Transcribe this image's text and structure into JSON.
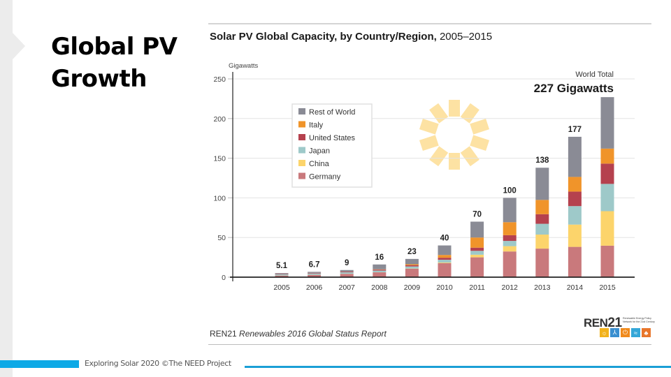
{
  "slide": {
    "title": "Global PV Growth",
    "footer": "Exploring Solar 2020 ©The NEED Project"
  },
  "source": {
    "org": "REN21",
    "report": "Renewables 2016 Global Status Report"
  },
  "logo": {
    "name_a": "REN",
    "name_b": "21",
    "tagline": "Renewable Energy Policy Network for the 21st Century",
    "icons": [
      "sun-icon",
      "wind-turbine-icon",
      "power-icon",
      "wave-icon",
      "leaf-icon"
    ],
    "icon_colors": [
      "#f2b21b",
      "#3a8fd0",
      "#f08a1c",
      "#35a7d8",
      "#e8762b"
    ]
  },
  "chart_data": {
    "type": "bar",
    "stacked": true,
    "title_bold": "Solar PV Global Capacity, by Country/Region,",
    "title_years": "2005–2015",
    "ylabel": "Gigawatts",
    "ylim": [
      0,
      250
    ],
    "yticks": [
      0,
      50,
      100,
      150,
      200,
      250
    ],
    "grid": true,
    "legend_position": "top-left",
    "categories": [
      "2005",
      "2006",
      "2007",
      "2008",
      "2009",
      "2010",
      "2011",
      "2012",
      "2013",
      "2014",
      "2015"
    ],
    "totals": [
      5.1,
      6.7,
      9,
      16,
      23,
      40,
      70,
      100,
      138,
      177,
      227
    ],
    "total_labels": [
      "5.1",
      "6.7",
      "9",
      "16",
      "23",
      "40",
      "70",
      "100",
      "138",
      "177"
    ],
    "series": [
      {
        "name": "Germany",
        "color": "#c9797c",
        "values": [
          2.0,
          2.9,
          4.2,
          6.1,
          10.6,
          17.6,
          25.0,
          32.4,
          36.0,
          38.2,
          39.7
        ]
      },
      {
        "name": "China",
        "color": "#fcd46b",
        "values": [
          0.1,
          0.1,
          0.1,
          0.1,
          0.3,
          0.8,
          3.3,
          6.7,
          17.7,
          28.1,
          43.5
        ]
      },
      {
        "name": "Japan",
        "color": "#9ec9c9",
        "values": [
          1.4,
          1.7,
          1.9,
          2.1,
          2.6,
          3.6,
          4.9,
          6.6,
          13.6,
          23.3,
          34.4
        ]
      },
      {
        "name": "United States",
        "color": "#b5414e",
        "values": [
          0.5,
          0.6,
          0.8,
          1.2,
          1.6,
          2.5,
          4.0,
          7.2,
          12.1,
          18.3,
          25.6
        ]
      },
      {
        "name": "Italy",
        "color": "#f0942a",
        "values": [
          0.05,
          0.1,
          0.1,
          0.4,
          1.2,
          3.5,
          12.8,
          16.4,
          18.0,
          18.5,
          18.9
        ]
      },
      {
        "name": "Rest of World",
        "color": "#8a8b95",
        "values": [
          1.05,
          1.3,
          1.9,
          6.1,
          6.7,
          12.0,
          20.0,
          30.7,
          40.6,
          50.6,
          64.9
        ]
      }
    ],
    "legend_order": [
      "Rest of World",
      "Italy",
      "United States",
      "Japan",
      "China",
      "Germany"
    ],
    "annotation": {
      "label": "World Total",
      "value": "227 Gigawatts"
    }
  }
}
